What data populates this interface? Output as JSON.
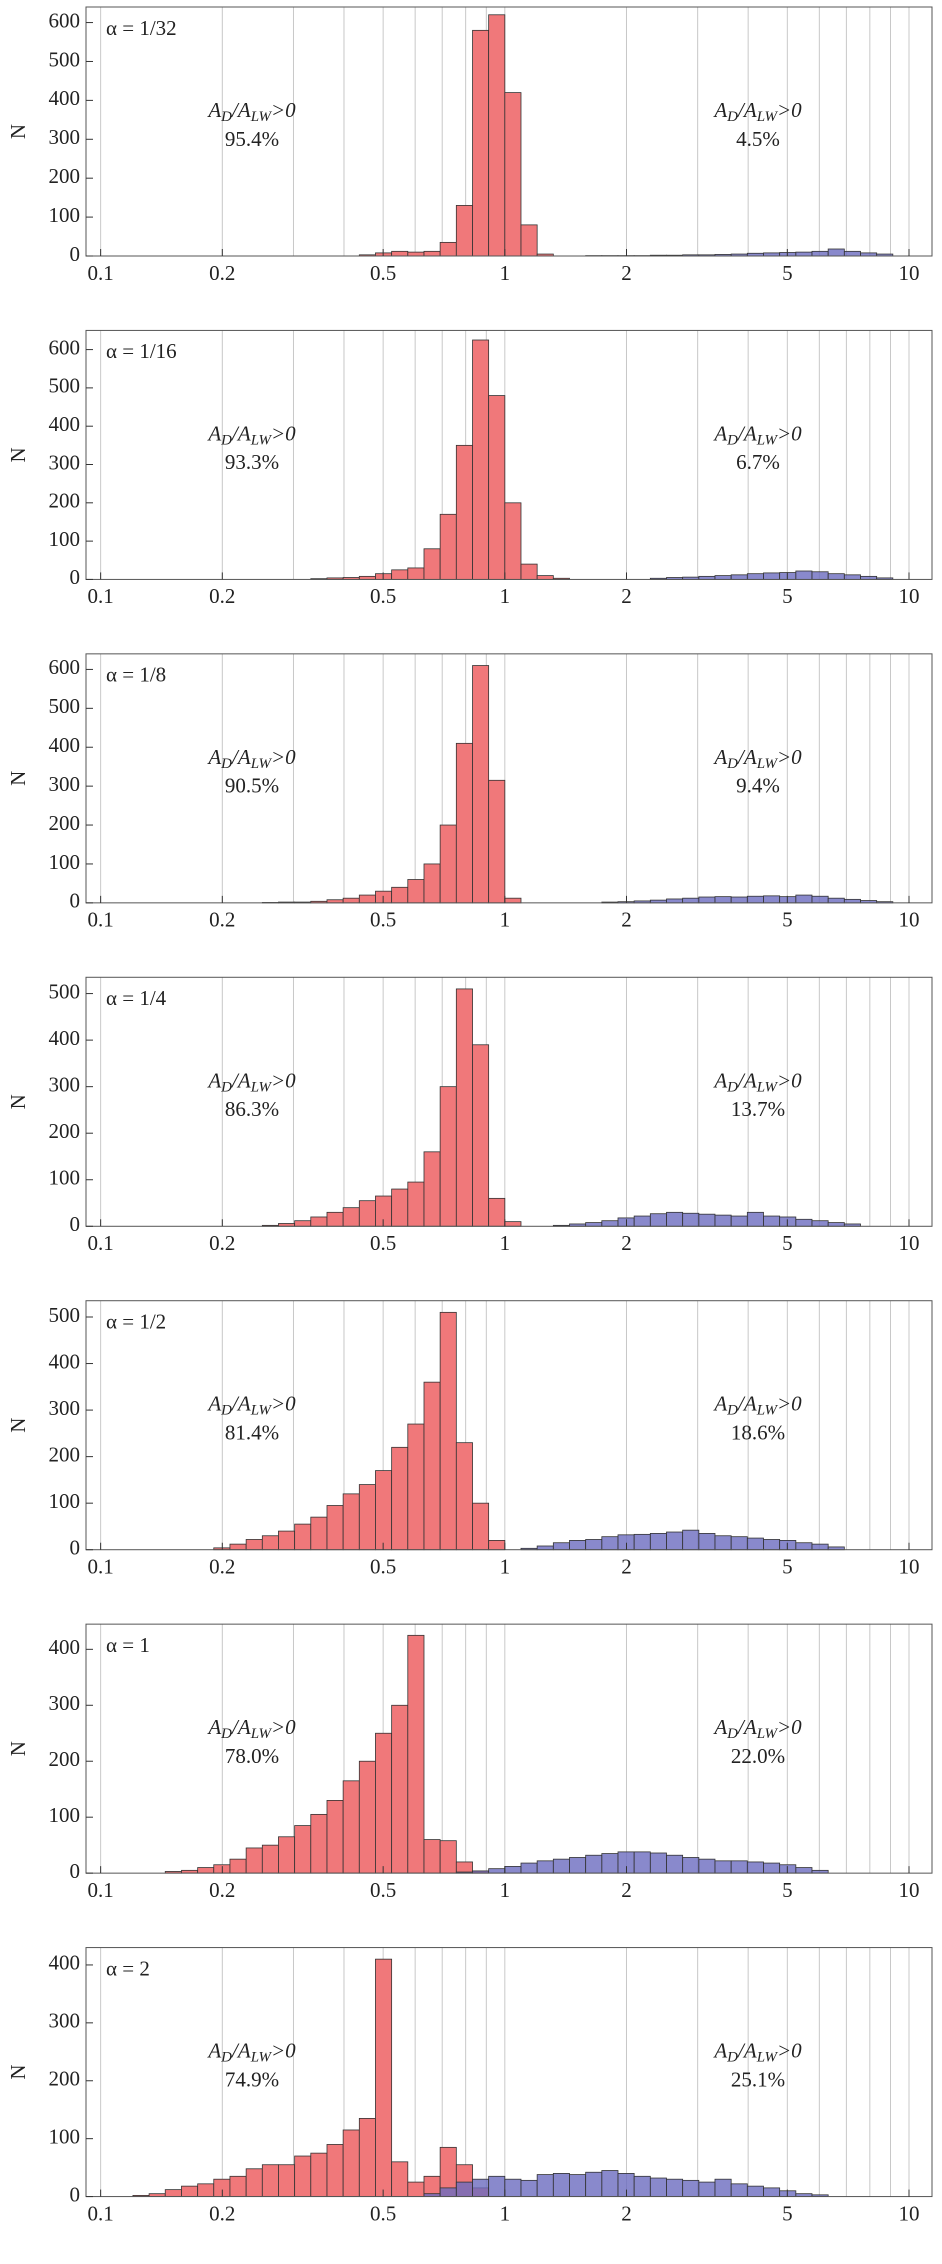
{
  "chart_data": [
    {
      "type": "histogram",
      "title": "α = 1/32",
      "y_label": "N",
      "log_x": true,
      "grid": true,
      "xlim": [
        0.092,
        11.4
      ],
      "ylim": [
        0,
        640
      ],
      "xticks": [
        0.1,
        0.2,
        0.5,
        1,
        2,
        5,
        10
      ],
      "yticks": [
        0,
        100,
        200,
        300,
        400,
        500,
        600
      ],
      "xgrid": [
        0.1,
        0.2,
        0.3,
        0.4,
        0.5,
        0.6,
        0.7,
        0.8,
        0.9,
        1,
        2,
        3,
        4,
        5,
        6,
        7,
        8,
        9,
        10
      ],
      "series": [
        {
          "color": "#f0787a",
          "bins": [
            0.4365,
            0.4786,
            0.5248,
            0.5754,
            0.631,
            0.6918,
            0.7586,
            0.832,
            0.912,
            1.0,
            1.0965,
            1.2023,
            1.3183
          ],
          "values": [
            3,
            8,
            12,
            10,
            12,
            35,
            130,
            580,
            620,
            420,
            80,
            5
          ]
        },
        {
          "color": "#6b6bbf",
          "bins": [
            1.585,
            1.738,
            1.905,
            2.089,
            2.291,
            2.512,
            2.754,
            3.02,
            3.311,
            3.631,
            3.981,
            4.365,
            4.786,
            5.248,
            5.754,
            6.31,
            6.918,
            7.586,
            8.318,
            9.12
          ],
          "values": [
            1,
            1,
            1,
            1,
            2,
            2,
            3,
            3,
            4,
            5,
            7,
            8,
            9,
            10,
            12,
            18,
            12,
            8,
            5
          ]
        }
      ],
      "annotations": [
        {
          "parts": [
            "A",
            "D",
            "/A",
            "LW",
            ">0"
          ],
          "percent": "95.4%"
        },
        {
          "parts": [
            "A",
            "D",
            "/A",
            "LW",
            ">0"
          ],
          "percent": "4.5%"
        }
      ]
    },
    {
      "type": "histogram",
      "title": "α = 1/16",
      "y_label": "N",
      "log_x": true,
      "grid": true,
      "xlim": [
        0.092,
        11.4
      ],
      "ylim": [
        0,
        650
      ],
      "xticks": [
        0.1,
        0.2,
        0.5,
        1,
        2,
        5,
        10
      ],
      "yticks": [
        0,
        100,
        200,
        300,
        400,
        500,
        600
      ],
      "xgrid": [
        0.1,
        0.2,
        0.3,
        0.4,
        0.5,
        0.6,
        0.7,
        0.8,
        0.9,
        1,
        2,
        3,
        4,
        5,
        6,
        7,
        8,
        9,
        10
      ],
      "series": [
        {
          "color": "#f0787a",
          "bins": [
            0.3311,
            0.3631,
            0.3981,
            0.4365,
            0.4786,
            0.5248,
            0.5754,
            0.631,
            0.6918,
            0.7586,
            0.832,
            0.912,
            1.0,
            1.0965,
            1.2023,
            1.3183,
            1.4454
          ],
          "values": [
            2,
            4,
            5,
            8,
            15,
            25,
            30,
            80,
            170,
            350,
            625,
            480,
            200,
            40,
            10,
            3
          ]
        },
        {
          "color": "#6b6bbf",
          "bins": [
            2.291,
            2.512,
            2.754,
            3.02,
            3.311,
            3.631,
            3.981,
            4.365,
            4.786,
            5.248,
            5.754,
            6.31,
            6.918,
            7.586,
            8.318,
            9.12
          ],
          "values": [
            3,
            5,
            6,
            8,
            10,
            12,
            15,
            17,
            18,
            22,
            20,
            15,
            12,
            8,
            4
          ]
        }
      ],
      "annotations": [
        {
          "parts": [
            "A",
            "D",
            "/A",
            "LW",
            ">0"
          ],
          "percent": "93.3%"
        },
        {
          "parts": [
            "A",
            "D",
            "/A",
            "LW",
            ">0"
          ],
          "percent": "6.7%"
        }
      ]
    },
    {
      "type": "histogram",
      "title": "α = 1/8",
      "y_label": "N",
      "log_x": true,
      "grid": true,
      "xlim": [
        0.092,
        11.4
      ],
      "ylim": [
        0,
        640
      ],
      "xticks": [
        0.1,
        0.2,
        0.5,
        1,
        2,
        5,
        10
      ],
      "yticks": [
        0,
        100,
        200,
        300,
        400,
        500,
        600
      ],
      "xgrid": [
        0.1,
        0.2,
        0.3,
        0.4,
        0.5,
        0.6,
        0.7,
        0.8,
        0.9,
        1,
        2,
        3,
        4,
        5,
        6,
        7,
        8,
        9,
        10
      ],
      "series": [
        {
          "color": "#f0787a",
          "bins": [
            0.2512,
            0.2754,
            0.302,
            0.3311,
            0.3631,
            0.3981,
            0.4365,
            0.4786,
            0.5248,
            0.5754,
            0.631,
            0.6918,
            0.7586,
            0.832,
            0.912,
            1.0,
            1.0965
          ],
          "values": [
            1,
            2,
            2,
            4,
            8,
            12,
            20,
            30,
            40,
            60,
            100,
            200,
            410,
            610,
            315,
            12
          ]
        },
        {
          "color": "#6b6bbf",
          "bins": [
            1.738,
            1.905,
            2.089,
            2.291,
            2.512,
            2.754,
            3.02,
            3.311,
            3.631,
            3.981,
            4.365,
            4.786,
            5.248,
            5.754,
            6.31,
            6.918,
            7.586,
            8.318,
            9.12
          ],
          "values": [
            2,
            3,
            5,
            7,
            10,
            12,
            15,
            16,
            15,
            17,
            18,
            16,
            20,
            17,
            12,
            9,
            6,
            3
          ]
        }
      ],
      "annotations": [
        {
          "parts": [
            "A",
            "D",
            "/A",
            "LW",
            ">0"
          ],
          "percent": "90.5%"
        },
        {
          "parts": [
            "A",
            "D",
            "/A",
            "LW",
            ">0"
          ],
          "percent": "9.4%"
        }
      ]
    },
    {
      "type": "histogram",
      "title": "α = 1/4",
      "y_label": "N",
      "log_x": true,
      "grid": true,
      "xlim": [
        0.092,
        11.4
      ],
      "ylim": [
        0,
        535
      ],
      "xticks": [
        0.1,
        0.2,
        0.5,
        1,
        2,
        5,
        10
      ],
      "yticks": [
        0,
        100,
        200,
        300,
        400,
        500
      ],
      "xgrid": [
        0.1,
        0.2,
        0.3,
        0.4,
        0.5,
        0.6,
        0.7,
        0.8,
        0.9,
        1,
        2,
        3,
        4,
        5,
        6,
        7,
        8,
        9,
        10
      ],
      "series": [
        {
          "color": "#f0787a",
          "bins": [
            0.2512,
            0.2754,
            0.302,
            0.3311,
            0.3631,
            0.3981,
            0.4365,
            0.4786,
            0.5248,
            0.5754,
            0.631,
            0.6918,
            0.7586,
            0.832,
            0.912,
            1.0,
            1.0965
          ],
          "values": [
            2,
            6,
            12,
            20,
            30,
            40,
            55,
            65,
            80,
            95,
            160,
            300,
            510,
            390,
            60,
            10
          ]
        },
        {
          "color": "#6b6bbf",
          "bins": [
            1.3183,
            1.4454,
            1.5849,
            1.7378,
            1.9055,
            2.0893,
            2.2909,
            2.5119,
            2.7542,
            3.02,
            3.311,
            3.631,
            3.981,
            4.365,
            4.786,
            5.248,
            5.754,
            6.31,
            6.918,
            7.586
          ],
          "values": [
            2,
            5,
            8,
            12,
            18,
            22,
            27,
            30,
            28,
            26,
            24,
            22,
            30,
            22,
            20,
            15,
            12,
            8,
            5
          ]
        }
      ],
      "annotations": [
        {
          "parts": [
            "A",
            "D",
            "/A",
            "LW",
            ">0"
          ],
          "percent": "86.3%"
        },
        {
          "parts": [
            "A",
            "D",
            "/A",
            "LW",
            ">0"
          ],
          "percent": "13.7%"
        }
      ]
    },
    {
      "type": "histogram",
      "title": "α = 1/2",
      "y_label": "N",
      "log_x": true,
      "grid": true,
      "xlim": [
        0.092,
        11.4
      ],
      "ylim": [
        0,
        535
      ],
      "xticks": [
        0.1,
        0.2,
        0.5,
        1,
        2,
        5,
        10
      ],
      "yticks": [
        0,
        100,
        200,
        300,
        400,
        500
      ],
      "xgrid": [
        0.1,
        0.2,
        0.3,
        0.4,
        0.5,
        0.6,
        0.7,
        0.8,
        0.9,
        1,
        2,
        3,
        4,
        5,
        6,
        7,
        8,
        9,
        10
      ],
      "series": [
        {
          "color": "#f0787a",
          "bins": [
            0.1905,
            0.2089,
            0.2291,
            0.2512,
            0.2754,
            0.302,
            0.3311,
            0.3631,
            0.3981,
            0.4365,
            0.4786,
            0.5248,
            0.5754,
            0.631,
            0.6918,
            0.7586,
            0.832,
            0.912,
            1.0
          ],
          "values": [
            4,
            12,
            22,
            30,
            40,
            55,
            70,
            95,
            120,
            140,
            170,
            220,
            270,
            360,
            510,
            230,
            100,
            20
          ]
        },
        {
          "color": "#6b6bbf",
          "bins": [
            1.0965,
            1.2023,
            1.3183,
            1.4454,
            1.5849,
            1.7378,
            1.9055,
            2.0893,
            2.2909,
            2.5119,
            2.7542,
            3.02,
            3.311,
            3.631,
            3.981,
            4.365,
            4.786,
            5.248,
            5.754,
            6.31,
            6.918
          ],
          "values": [
            3,
            8,
            15,
            20,
            22,
            28,
            32,
            33,
            35,
            38,
            42,
            35,
            30,
            28,
            25,
            22,
            20,
            15,
            12,
            6
          ]
        }
      ],
      "annotations": [
        {
          "parts": [
            "A",
            "D",
            "/A",
            "LW",
            ">0"
          ],
          "percent": "81.4%"
        },
        {
          "parts": [
            "A",
            "D",
            "/A",
            "LW",
            ">0"
          ],
          "percent": "18.6%"
        }
      ]
    },
    {
      "type": "histogram",
      "title": "α = 1",
      "y_label": "N",
      "log_x": true,
      "grid": true,
      "xlim": [
        0.092,
        11.4
      ],
      "ylim": [
        0,
        445
      ],
      "xticks": [
        0.1,
        0.2,
        0.5,
        1,
        2,
        5,
        10
      ],
      "yticks": [
        0,
        100,
        200,
        300,
        400
      ],
      "xgrid": [
        0.1,
        0.2,
        0.3,
        0.4,
        0.5,
        0.6,
        0.7,
        0.8,
        0.9,
        1,
        2,
        3,
        4,
        5,
        6,
        7,
        8,
        9,
        10
      ],
      "series": [
        {
          "color": "#f0787a",
          "bins": [
            0.1445,
            0.1585,
            0.1738,
            0.1905,
            0.2089,
            0.2291,
            0.2512,
            0.2754,
            0.302,
            0.3311,
            0.3631,
            0.3981,
            0.4365,
            0.4786,
            0.5248,
            0.5754,
            0.631,
            0.6918,
            0.7586,
            0.832,
            0.912
          ],
          "values": [
            3,
            5,
            10,
            15,
            25,
            45,
            50,
            65,
            85,
            105,
            130,
            165,
            200,
            250,
            300,
            425,
            60,
            58,
            20,
            4
          ]
        },
        {
          "color": "#6b6bbf",
          "bins": [
            0.7586,
            0.832,
            0.912,
            1.0,
            1.0965,
            1.2023,
            1.3183,
            1.4454,
            1.5849,
            1.7378,
            1.9055,
            2.0893,
            2.2909,
            2.5119,
            2.7542,
            3.02,
            3.311,
            3.631,
            3.981,
            4.365,
            4.786,
            5.248,
            5.754,
            6.31
          ],
          "values": [
            2,
            4,
            8,
            12,
            18,
            22,
            25,
            28,
            32,
            35,
            38,
            38,
            36,
            32,
            28,
            25,
            22,
            22,
            20,
            18,
            15,
            10,
            5
          ]
        }
      ],
      "annotations": [
        {
          "parts": [
            "A",
            "D",
            "/A",
            "LW",
            ">0"
          ],
          "percent": "78.0%"
        },
        {
          "parts": [
            "A",
            "D",
            "/A",
            "LW",
            ">0"
          ],
          "percent": "22.0%"
        }
      ]
    },
    {
      "type": "histogram",
      "title": "α = 2",
      "y_label": "N",
      "log_x": true,
      "grid": true,
      "xlim": [
        0.092,
        11.4
      ],
      "ylim": [
        0,
        430
      ],
      "xticks": [
        0.1,
        0.2,
        0.5,
        1,
        2,
        5,
        10
      ],
      "yticks": [
        0,
        100,
        200,
        300,
        400
      ],
      "xgrid": [
        0.1,
        0.2,
        0.3,
        0.4,
        0.5,
        0.6,
        0.7,
        0.8,
        0.9,
        1,
        2,
        3,
        4,
        5,
        6,
        7,
        8,
        9,
        10
      ],
      "series": [
        {
          "color": "#f0787a",
          "bins": [
            0.1202,
            0.1318,
            0.1445,
            0.1585,
            0.1738,
            0.1905,
            0.2089,
            0.2291,
            0.2512,
            0.2754,
            0.302,
            0.3311,
            0.3631,
            0.3981,
            0.4365,
            0.4786,
            0.5248,
            0.5754,
            0.631,
            0.6918,
            0.7586,
            0.832,
            0.912
          ],
          "values": [
            2,
            5,
            12,
            18,
            22,
            30,
            35,
            48,
            55,
            55,
            70,
            75,
            90,
            115,
            135,
            410,
            60,
            25,
            35,
            85,
            55,
            15
          ]
        },
        {
          "color": "#6b6bbf",
          "bins": [
            0.631,
            0.6918,
            0.7586,
            0.832,
            0.912,
            1.0,
            1.0965,
            1.2023,
            1.3183,
            1.4454,
            1.5849,
            1.7378,
            1.9055,
            2.0893,
            2.2909,
            2.5119,
            2.7542,
            3.02,
            3.311,
            3.631,
            3.981,
            4.365,
            4.786,
            5.248,
            5.754,
            6.31
          ],
          "values": [
            5,
            15,
            25,
            30,
            35,
            30,
            28,
            38,
            40,
            38,
            42,
            45,
            40,
            35,
            32,
            30,
            28,
            25,
            30,
            22,
            18,
            15,
            10,
            5,
            3
          ]
        }
      ],
      "annotations": [
        {
          "parts": [
            "A",
            "D",
            "/A",
            "LW",
            ">0"
          ],
          "percent": "74.9%"
        },
        {
          "parts": [
            "A",
            "D",
            "/A",
            "LW",
            ">0"
          ],
          "percent": "25.1%"
        }
      ]
    }
  ]
}
